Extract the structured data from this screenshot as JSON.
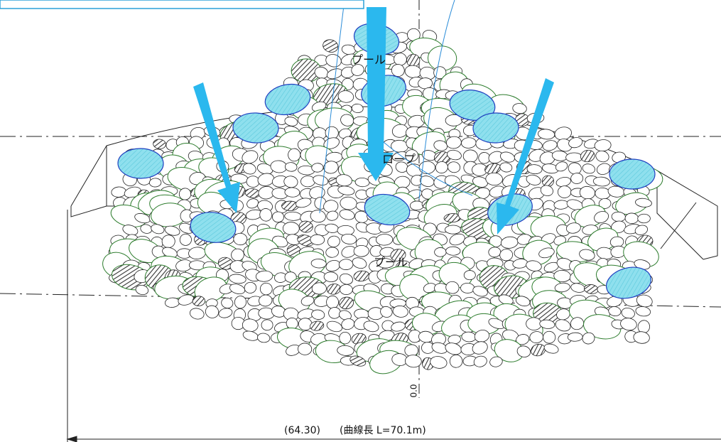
{
  "labels": {
    "pool_top": "プール",
    "rope": "ロープ",
    "pool_bottom": "プール",
    "elevation": "0.0"
  },
  "dimension": {
    "length": "(64.30)",
    "curve": "(曲線長 L=70.1m)"
  }
}
